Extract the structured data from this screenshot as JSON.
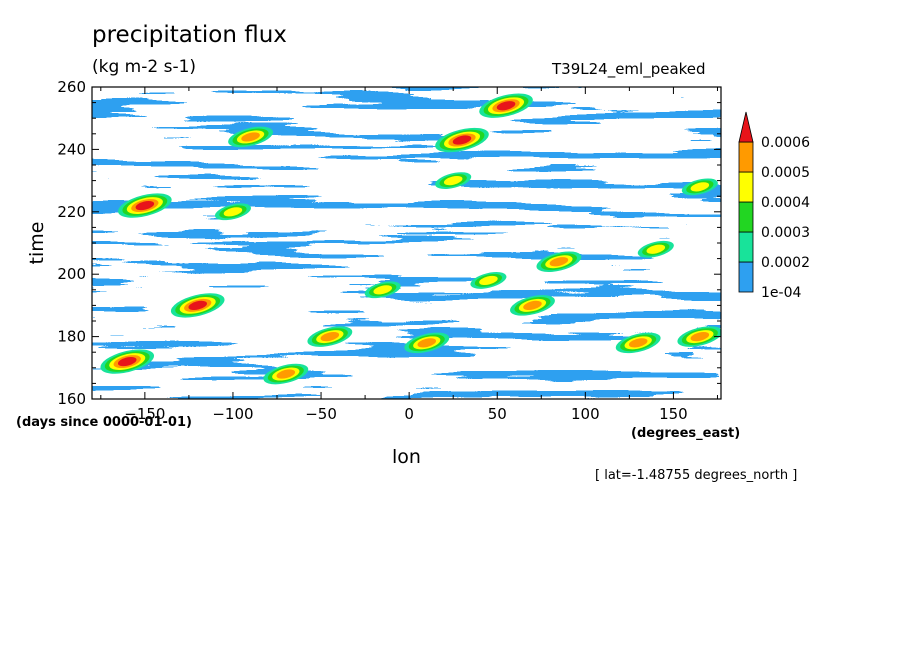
{
  "chart_data": {
    "type": "heatmap",
    "title": "precipitation flux",
    "units": "(kg m-2 s-1)",
    "run_name": "T39L24_eml_peaked",
    "xlabel": "lon",
    "x_units": "(degrees_east)",
    "ylabel": "time",
    "y_units": "(days since 0000-01-01)",
    "slice_label": "[ lat=-1.48755 degrees_north ]",
    "xlim": [
      -180,
      177
    ],
    "ylim": [
      160,
      260
    ],
    "x_ticks": [
      -150,
      -100,
      -50,
      0,
      50,
      100,
      150
    ],
    "y_ticks": [
      160,
      180,
      200,
      220,
      240,
      260
    ],
    "colorbar": {
      "levels": [
        0.0001,
        0.0002,
        0.0003,
        0.0004,
        0.0005,
        0.0006
      ],
      "level_labels": [
        "1e-04",
        "0.0002",
        "0.0003",
        "0.0004",
        "0.0005",
        "0.0006"
      ],
      "colors": [
        "#2ea0f0",
        "#18e39a",
        "#22d622",
        "#ffff00",
        "#ff9a00",
        "#e8141a"
      ],
      "extend": "max"
    },
    "hotspots": [
      {
        "lon": -150,
        "time": 222,
        "value": 0.0007
      },
      {
        "lon": -160,
        "time": 172,
        "value": 0.0006
      },
      {
        "lon": 30,
        "time": 243,
        "value": 0.0006
      },
      {
        "lon": 55,
        "time": 254,
        "value": 0.0006
      },
      {
        "lon": -120,
        "time": 190,
        "value": 0.0006
      },
      {
        "lon": 70,
        "time": 190,
        "value": 0.0005
      },
      {
        "lon": -90,
        "time": 244,
        "value": 0.0005
      },
      {
        "lon": -70,
        "time": 168,
        "value": 0.0005
      },
      {
        "lon": 130,
        "time": 178,
        "value": 0.0005
      },
      {
        "lon": 165,
        "time": 180,
        "value": 0.0005
      },
      {
        "lon": 85,
        "time": 204,
        "value": 0.0005
      },
      {
        "lon": 140,
        "time": 208,
        "value": 0.0004
      },
      {
        "lon": -45,
        "time": 180,
        "value": 0.0005
      },
      {
        "lon": 10,
        "time": 178,
        "value": 0.0005
      },
      {
        "lon": -100,
        "time": 220,
        "value": 0.0004
      },
      {
        "lon": 165,
        "time": 228,
        "value": 0.0004
      },
      {
        "lon": 25,
        "time": 230,
        "value": 0.0004
      },
      {
        "lon": -15,
        "time": 195,
        "value": 0.0004
      },
      {
        "lon": 45,
        "time": 198,
        "value": 0.0004
      }
    ]
  }
}
